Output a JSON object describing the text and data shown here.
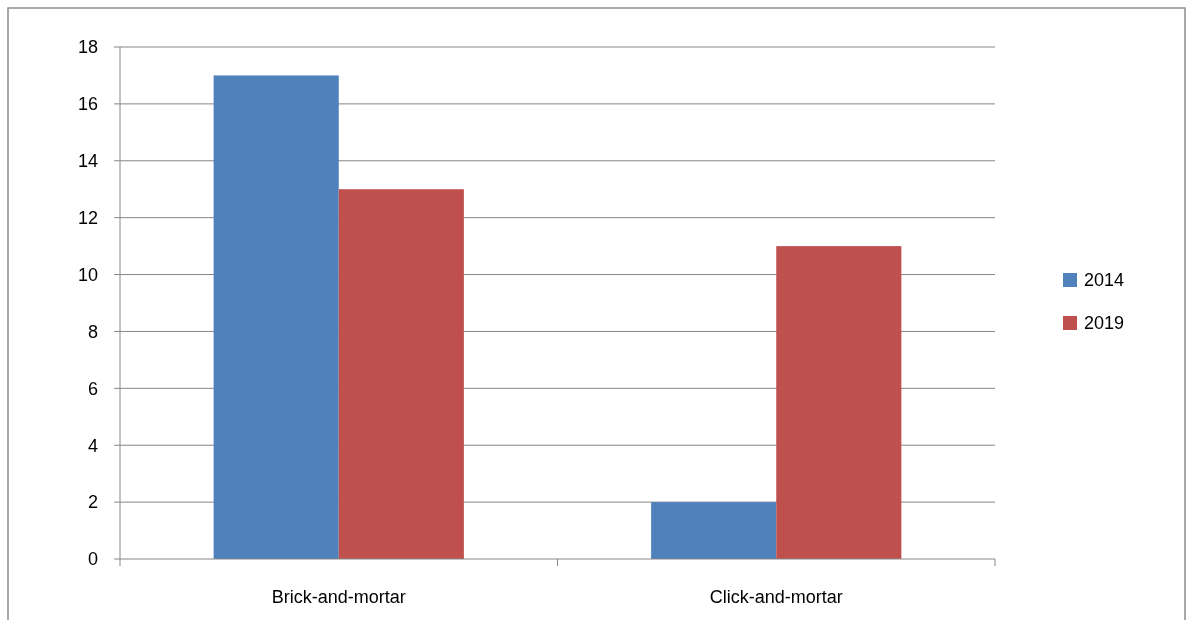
{
  "chart_data": {
    "type": "bar",
    "categories": [
      "Brick-and-mortar",
      "Click-and-mortar"
    ],
    "series": [
      {
        "name": "2014",
        "color": "#4f81bd",
        "values": [
          17,
          2
        ]
      },
      {
        "name": "2019",
        "color": "#c0504d",
        "values": [
          13,
          11
        ]
      }
    ],
    "ylim": [
      0,
      18
    ],
    "yticks": [
      0,
      2,
      4,
      6,
      8,
      10,
      12,
      14,
      16,
      18
    ],
    "grid": "y",
    "legend": "right"
  }
}
